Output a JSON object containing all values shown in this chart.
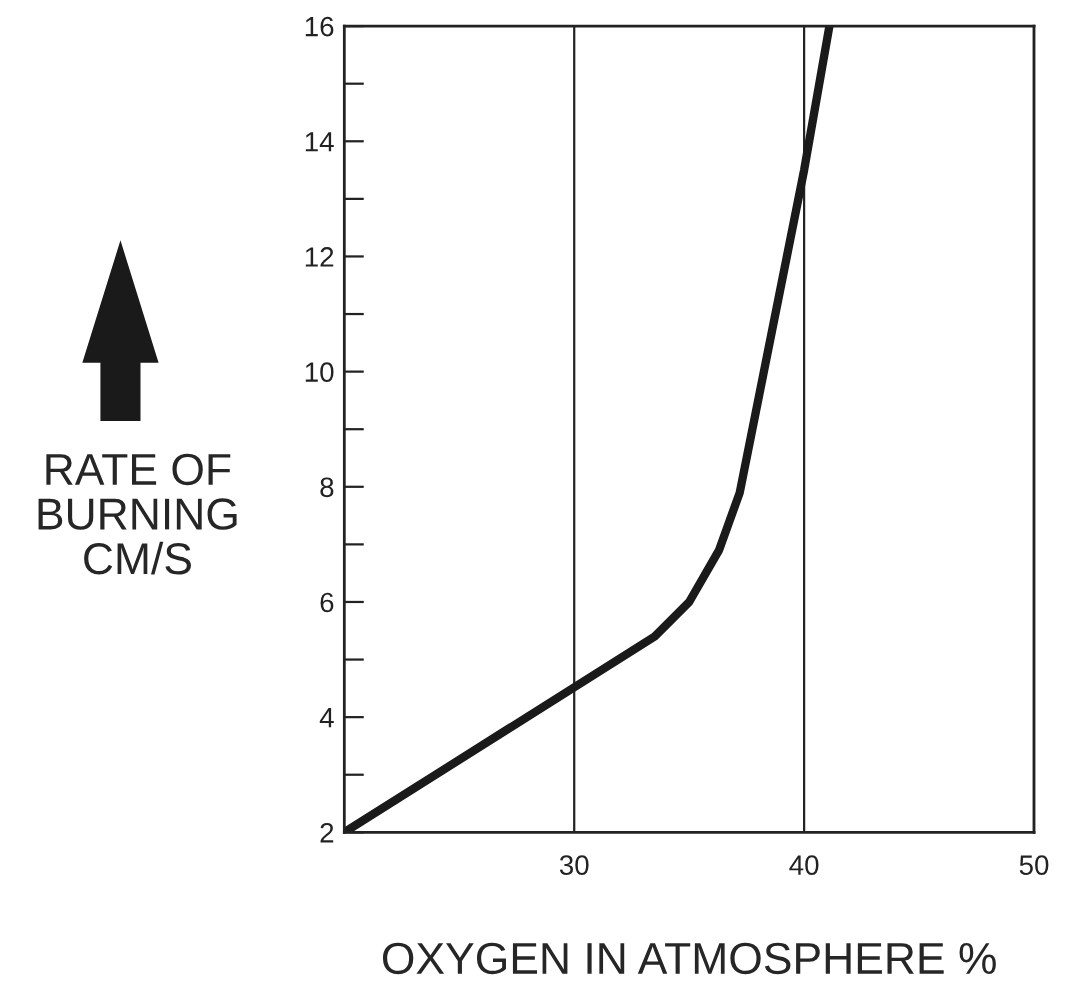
{
  "chart_data": {
    "type": "line",
    "xlabel": "OXYGEN IN ATMOSPHERE %",
    "ylabel": "RATE OF\nBURNING\nCM/S",
    "x": [
      20,
      33.5,
      35,
      36.3,
      37.2,
      40,
      41.1
    ],
    "series": [
      {
        "color": "#1a1a1a",
        "values": [
          2,
          5.4,
          6.0,
          6.9,
          7.9,
          13.5,
          16
        ]
      }
    ],
    "xlim": [
      20,
      50
    ],
    "xticks": [
      30,
      40,
      50
    ],
    "ylim": [
      2,
      16
    ],
    "yticks": [
      2,
      {
        "value": 3,
        "label": null
      },
      4,
      {
        "value": 5,
        "label": null
      },
      6,
      {
        "value": 7,
        "label": null
      },
      8,
      {
        "value": 9,
        "label": null
      },
      10,
      {
        "value": 11,
        "label": null
      },
      12,
      {
        "value": 13,
        "label": null
      },
      14,
      {
        "value": 15,
        "label": null
      },
      16
    ],
    "grid": "x",
    "legend": false,
    "marker": "none",
    "line_style": "solid"
  }
}
